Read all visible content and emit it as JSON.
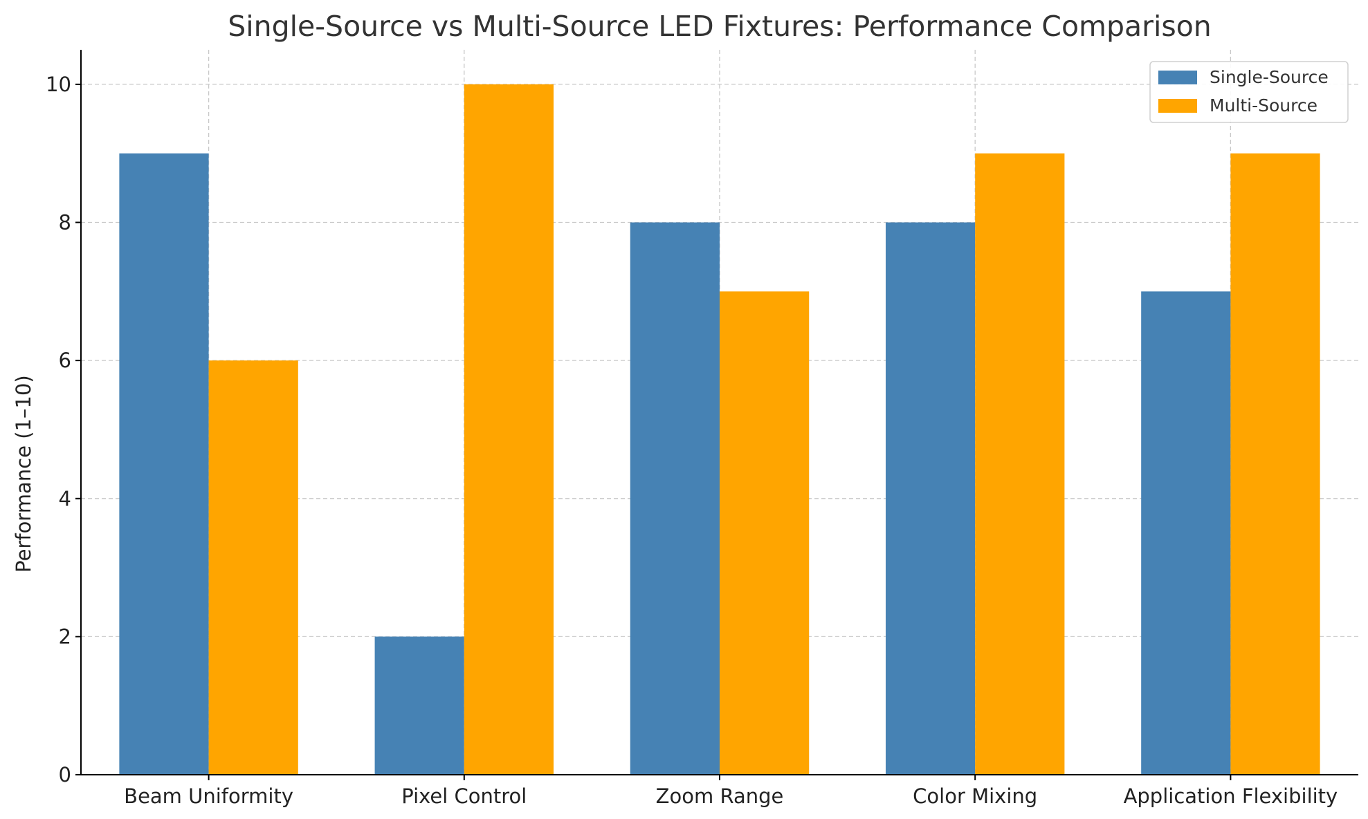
{
  "chart_data": {
    "type": "bar",
    "title": "Single-Source vs Multi-Source LED Fixtures: Performance Comparison",
    "xlabel": "",
    "ylabel": "Performance (1–10)",
    "categories": [
      "Beam Uniformity",
      "Pixel Control",
      "Zoom Range",
      "Color Mixing",
      "Application Flexibility"
    ],
    "series": [
      {
        "name": "Single-Source",
        "color": "#4682b4",
        "values": [
          9,
          2,
          8,
          8,
          7
        ]
      },
      {
        "name": "Multi-Source",
        "color": "#ffa500",
        "values": [
          6,
          10,
          7,
          9,
          9
        ]
      }
    ],
    "ylim": [
      0,
      10.5
    ],
    "yticks": [
      0,
      2,
      4,
      6,
      8,
      10
    ],
    "grid": true,
    "legend_position": "top-right"
  }
}
